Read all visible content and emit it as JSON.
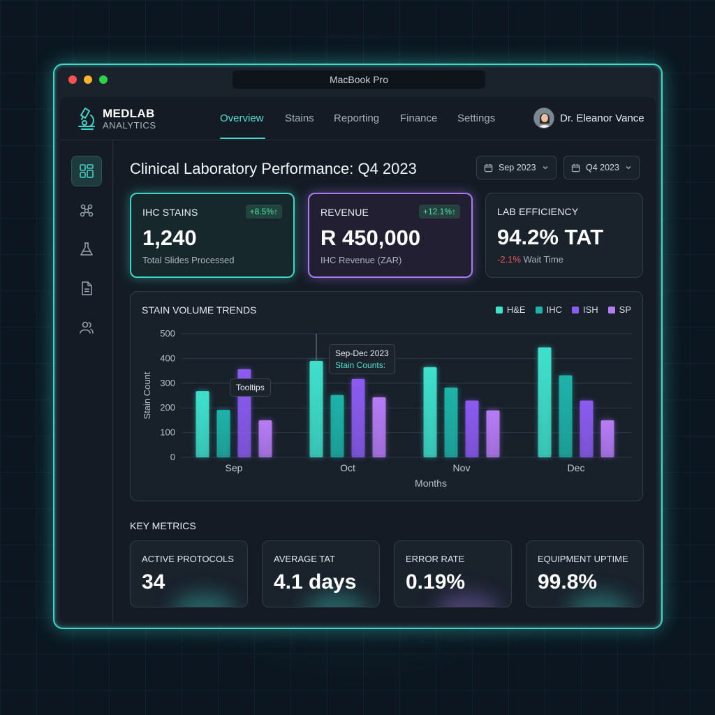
{
  "window": {
    "title": "MacBook Pro"
  },
  "brand": {
    "name": "MEDLAB",
    "sub": "ANALYTICS"
  },
  "nav": {
    "items": [
      {
        "label": "Overview",
        "active": true
      },
      {
        "label": "Stains",
        "active": false
      },
      {
        "label": "Reporting",
        "active": false
      },
      {
        "label": "Finance",
        "active": false
      },
      {
        "label": "Settings",
        "active": false
      }
    ]
  },
  "user": {
    "name": "Dr. Eleanor Vance"
  },
  "sidebar": {
    "items": [
      {
        "icon": "dashboard-icon",
        "active": true
      },
      {
        "icon": "molecule-icon",
        "active": false
      },
      {
        "icon": "flask-icon",
        "active": false
      },
      {
        "icon": "document-icon",
        "active": false
      },
      {
        "icon": "users-icon",
        "active": false
      }
    ]
  },
  "page": {
    "title": "Clinical Laboratory Performance: Q4 2023"
  },
  "filters": {
    "month": "Sep 2023",
    "quarter": "Q4 2023"
  },
  "kpis": [
    {
      "label": "IHC STAINS",
      "value": "1,240",
      "sub": "Total Slides Processed",
      "badge": "+8.5%↑"
    },
    {
      "label": "REVENUE",
      "value": "R 450,000",
      "sub": "IHC Revenue (ZAR)",
      "badge": "+12.1%↑"
    },
    {
      "label": "LAB EFFICIENCY",
      "value": "94.2% TAT",
      "sub_neg": "-2.1%",
      "sub": "Wait Time"
    }
  ],
  "chart_card": {
    "title": "STAIN VOLUME TRENDS",
    "tooltip_a": "Tooltips",
    "tooltip_b_title": "Sep-Dec 2023",
    "tooltip_b_sub": "Stain Counts:"
  },
  "chart_data": {
    "type": "bar",
    "title": "STAIN VOLUME TRENDS",
    "xlabel": "Months",
    "ylabel": "Stain Count",
    "categories": [
      "Sep",
      "Oct",
      "Nov",
      "Dec"
    ],
    "ylim": [
      0,
      500
    ],
    "yticks": [
      0,
      100,
      200,
      300,
      400,
      500
    ],
    "grid": true,
    "legend_position": "top-right",
    "series": [
      {
        "name": "H&E",
        "color": "#3fe0cc",
        "values": [
          268,
          390,
          365,
          445
        ]
      },
      {
        "name": "IHC",
        "color": "#1eb3a8",
        "values": [
          192,
          252,
          282,
          332
        ]
      },
      {
        "name": "ISH",
        "color": "#8b5cf0",
        "values": [
          357,
          317,
          230,
          230
        ]
      },
      {
        "name": "SP",
        "color": "#b67cf5",
        "values": [
          150,
          243,
          190,
          150
        ]
      }
    ]
  },
  "key_metrics": {
    "title": "KEY METRICS",
    "items": [
      {
        "label": "ACTIVE PROTOCOLS",
        "value": "34",
        "glow": "#3fd6c8"
      },
      {
        "label": "AVERAGE TAT",
        "value": "4.1 days",
        "glow": "#3fd6c8"
      },
      {
        "label": "ERROR RATE",
        "value": "0.19%",
        "glow": "#a77cf0"
      },
      {
        "label": "EQUIPMENT UPTIME",
        "value": "99.8%",
        "glow": "#3fd6c8"
      }
    ]
  }
}
